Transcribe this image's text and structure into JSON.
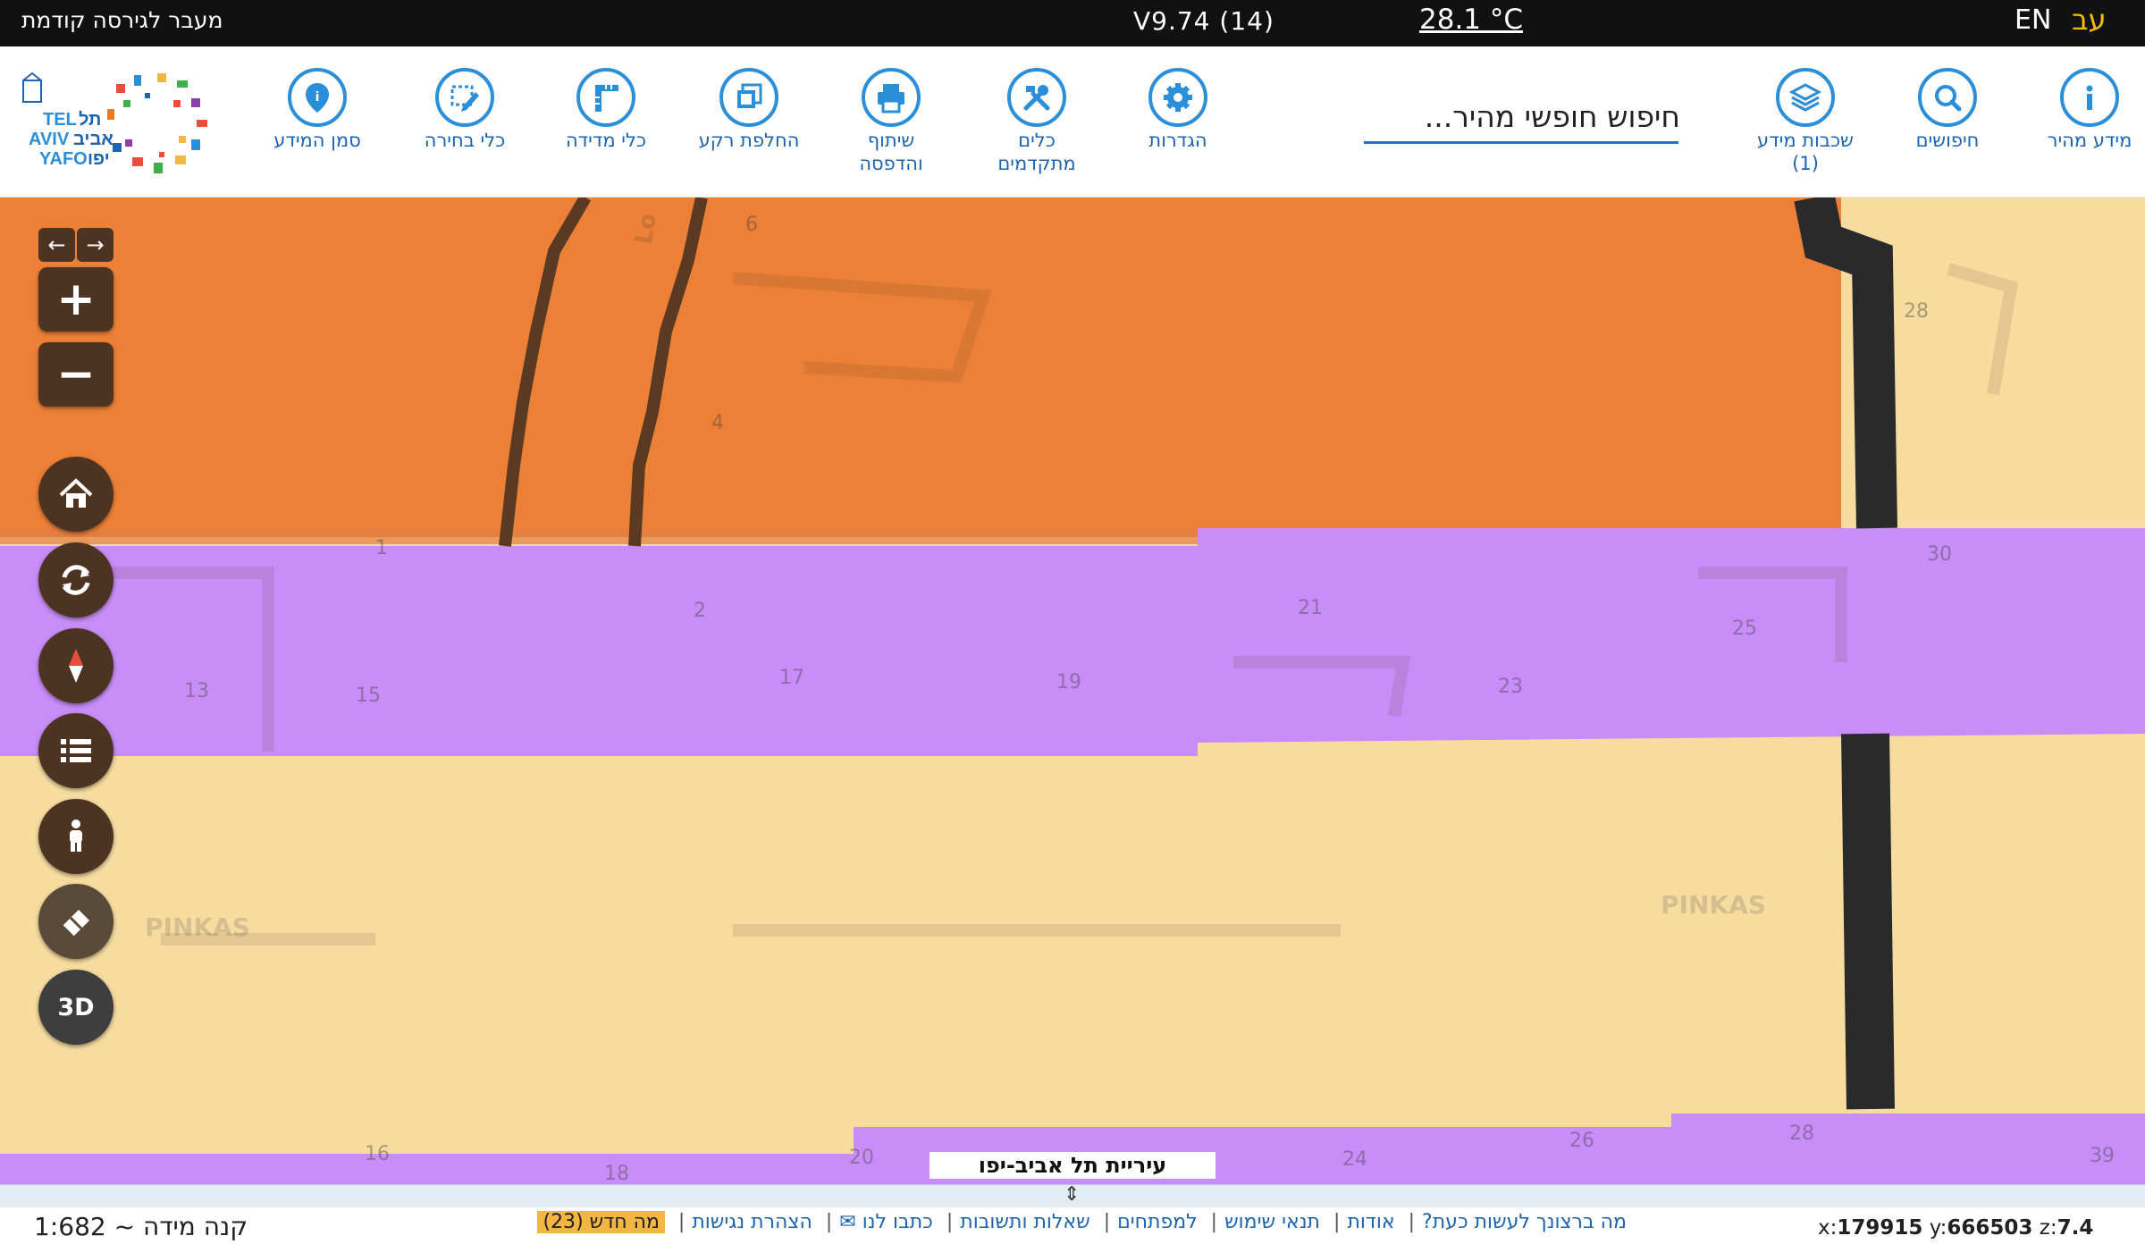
{
  "topbar": {
    "old_version_link": "מעבר לגירסה קודמת",
    "version": "V9.74 (14)",
    "temperature": "28.1 °C",
    "lang_en": "EN",
    "lang_he": "עב"
  },
  "toolbar": {
    "quick_info": "מידע מהיר",
    "searches": "חיפושים",
    "info_layers": "שכבות מידע\n(1)",
    "search_placeholder": "חיפוש חופשי מהיר...",
    "settings": "הגדרות",
    "advanced_tools": "כלים\nמתקדמים",
    "share_print": "שיתוף\nוהדפסה",
    "switch_background": "החלפת רקע",
    "measure_tools": "כלי מדידה",
    "selection_tools": "כלי בחירה",
    "info_marker": "סמן המידע",
    "logo_text": [
      "TEL",
      "תל",
      "AVIV",
      "אביב",
      "YAFO",
      "יפו"
    ]
  },
  "map": {
    "street_labels": [
      "PINKAS",
      "PINKAS",
      "Lo"
    ],
    "house_numbers": [
      "6",
      "4",
      "1",
      "2",
      "13",
      "15",
      "17",
      "19",
      "21",
      "23",
      "25",
      "30",
      "28",
      "16",
      "18",
      "20",
      "24",
      "26",
      "28",
      "39"
    ],
    "caption": "עיריית תל אביב-יפו",
    "colors": {
      "orange_zone": "#ec8036",
      "purple_zone": "#c88df8",
      "sand_zone": "#f7dca0",
      "control_brown": "#4d3322"
    },
    "controls": {
      "zoom_in": "+",
      "zoom_out": "−",
      "three_d": "3D",
      "prev": "←",
      "next": "→"
    }
  },
  "footer": {
    "scale": "קנה מידה ~ 1:682",
    "links": [
      "מה ברצונך לעשות כעת?",
      "אודות",
      "תנאי שימוש",
      "למפתחים",
      "שאלות ותשובות",
      "כתבו לנו ✉",
      "הצהרת נגישות"
    ],
    "whats_new": "מה חדש (23)",
    "coords": {
      "x_label": "x:",
      "x": "179915",
      "y_label": "y:",
      "y": "666503",
      "z_label": "z:",
      "z": "7.4"
    }
  }
}
